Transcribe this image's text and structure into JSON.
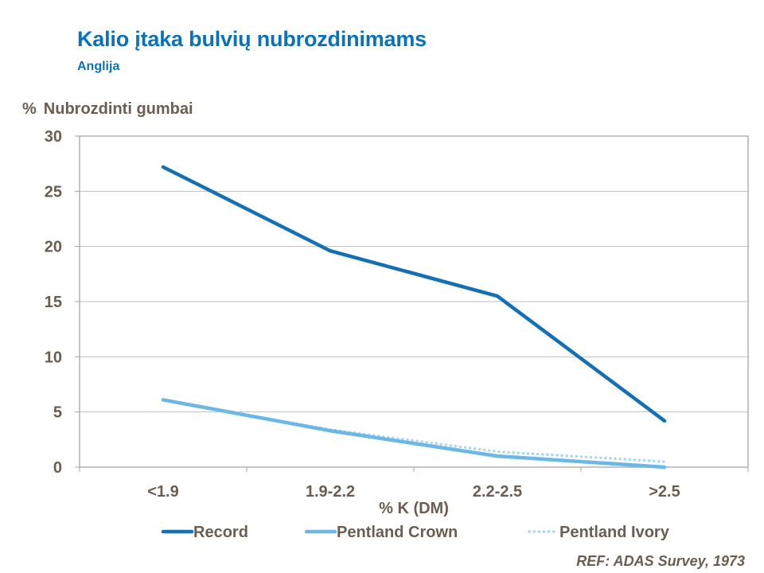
{
  "header": {
    "title": "Kalio įtaka bulvių nubrozdinimams",
    "subtitle": "Anglija"
  },
  "footer": {
    "ref": "REF: ADAS Survey, 1973"
  },
  "colors": {
    "title": "#0a72ba",
    "axis_text": "#6b5d4f",
    "grid": "#bfbfbf",
    "plot_border": "#a6a6a6"
  },
  "chart_data": {
    "type": "line",
    "title": "",
    "ylabel_unit": "%",
    "ylabel": "Nubrozdinti gumbai",
    "xlabel": "%  K (DM)",
    "categories": [
      "<1.9",
      "1.9-2.2",
      "2.2-2.5",
      ">2.5"
    ],
    "ylim": [
      0,
      30
    ],
    "yticks": [
      0,
      5,
      10,
      15,
      20,
      25,
      30
    ],
    "grid": true,
    "legend_position": "bottom",
    "series": [
      {
        "name": "Record",
        "values": [
          27.2,
          19.6,
          15.5,
          4.2
        ],
        "color": "#1470b6",
        "style": "solid"
      },
      {
        "name": "Pentland Crown",
        "values": [
          6.1,
          3.3,
          1.0,
          0.0
        ],
        "color": "#6ab7e8",
        "style": "solid"
      },
      {
        "name": "Pentland Ivory",
        "values": [
          6.1,
          3.4,
          1.4,
          0.5
        ],
        "color": "#a9d8f3",
        "style": "dotted"
      }
    ]
  }
}
